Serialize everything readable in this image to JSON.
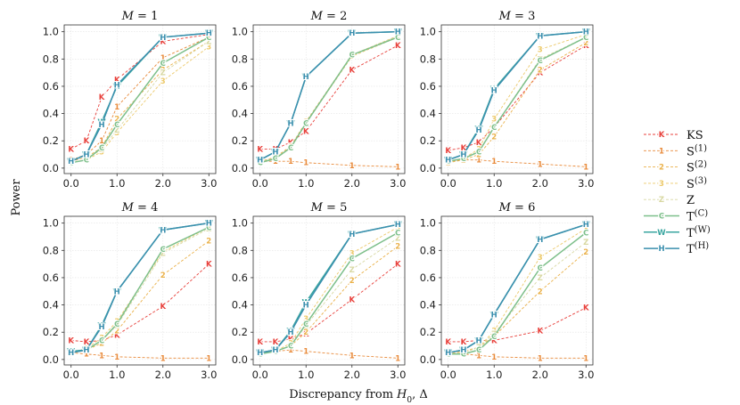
{
  "chart_data": {
    "type": "line",
    "x": [
      0.0,
      0.333,
      0.667,
      1.0,
      2.0,
      3.0
    ],
    "xlabel_main": "Discrepancy from",
    "xlabel_sub": "H",
    "xlabel_subscript": "0",
    "xlabel_tail": ", Δ",
    "ylabel": "Power",
    "xlim": [
      -0.15,
      3.15
    ],
    "ylim": [
      -0.04,
      1.05
    ],
    "xticks": [
      0.0,
      1.0,
      2.0,
      3.0
    ],
    "xtick_labels": [
      "0.0",
      "1.0",
      "2.0",
      "3.0"
    ],
    "yticks": [
      0.0,
      0.2,
      0.4,
      0.6,
      0.8,
      1.0
    ],
    "ytick_labels": [
      "0.0",
      "0.2",
      "0.4",
      "0.6",
      "0.8",
      "1.0"
    ],
    "legend": [
      {
        "key": "KS",
        "marker": "K",
        "label": "KS",
        "sup": "",
        "color": "#e8413c",
        "dash": "3 2",
        "width": 0.9
      },
      {
        "key": "S1",
        "marker": "1",
        "label": "S",
        "sup": "(1)",
        "color": "#e88a3a",
        "dash": "3 2",
        "width": 0.9
      },
      {
        "key": "S2",
        "marker": "2",
        "label": "S",
        "sup": "(2)",
        "color": "#eab14a",
        "dash": "3 2",
        "width": 0.9
      },
      {
        "key": "S3",
        "marker": "3",
        "label": "S",
        "sup": "(3)",
        "color": "#ecc96a",
        "dash": "3 2",
        "width": 0.9
      },
      {
        "key": "Z",
        "marker": "Z",
        "label": "Z",
        "sup": "",
        "color": "#d8d8a2",
        "dash": "3 2",
        "width": 0.9
      },
      {
        "key": "TC",
        "marker": "C",
        "label": "T",
        "sup": "(C)",
        "color": "#7dbf8a",
        "dash": "",
        "width": 1.5
      },
      {
        "key": "TW",
        "marker": "W",
        "label": "T",
        "sup": "(W)",
        "color": "#3aa6a0",
        "dash": "",
        "width": 1.5
      },
      {
        "key": "TH",
        "marker": "H",
        "label": "T",
        "sup": "(H)",
        "color": "#3a8fae",
        "dash": "",
        "width": 1.5
      }
    ],
    "panels": [
      {
        "title_var": "M",
        "title_eq": " = ",
        "title_val": "1",
        "series": {
          "KS": [
            0.14,
            0.2,
            0.52,
            0.65,
            0.93,
            0.98
          ],
          "S1": [
            0.06,
            0.1,
            0.2,
            0.45,
            0.81,
            0.96
          ],
          "S2": [
            0.05,
            0.08,
            0.15,
            0.36,
            0.72,
            0.93
          ],
          "S3": [
            0.04,
            0.06,
            0.12,
            0.26,
            0.64,
            0.89
          ],
          "Z": [
            0.04,
            0.06,
            0.14,
            0.28,
            0.7,
            0.93
          ],
          "TC": [
            0.04,
            0.06,
            0.15,
            0.32,
            0.77,
            0.96
          ],
          "TW": [
            0.05,
            0.1,
            0.34,
            0.6,
            0.96,
            0.99
          ],
          "TH": [
            0.05,
            0.1,
            0.32,
            0.61,
            0.96,
            0.99
          ]
        }
      },
      {
        "title_var": "M",
        "title_eq": " = ",
        "title_val": "2",
        "series": {
          "KS": [
            0.14,
            0.14,
            0.19,
            0.27,
            0.72,
            0.9
          ],
          "S1": [
            0.05,
            0.05,
            0.05,
            0.04,
            0.02,
            0.01
          ],
          "S2": [
            0.05,
            0.08,
            0.16,
            0.34,
            0.83,
            0.97
          ],
          "S3": [
            0.05,
            0.07,
            0.15,
            0.33,
            0.82,
            0.96
          ],
          "Z": [
            0.05,
            0.07,
            0.15,
            0.33,
            0.83,
            0.97
          ],
          "TC": [
            0.04,
            0.07,
            0.15,
            0.33,
            0.83,
            0.96
          ],
          "TW": [
            0.06,
            0.12,
            0.33,
            0.67,
            0.99,
            1.0
          ],
          "TH": [
            0.06,
            0.12,
            0.33,
            0.67,
            0.99,
            1.0
          ]
        }
      },
      {
        "title_var": "M",
        "title_eq": " = ",
        "title_val": "3",
        "series": {
          "KS": [
            0.13,
            0.15,
            0.19,
            0.3,
            0.7,
            0.9
          ],
          "S1": [
            0.05,
            0.06,
            0.06,
            0.05,
            0.03,
            0.01
          ],
          "S2": [
            0.04,
            0.06,
            0.1,
            0.23,
            0.72,
            0.92
          ],
          "S3": [
            0.05,
            0.07,
            0.14,
            0.36,
            0.87,
            0.98
          ],
          "Z": [
            0.05,
            0.07,
            0.12,
            0.3,
            0.8,
            0.96
          ],
          "TC": [
            0.05,
            0.07,
            0.12,
            0.3,
            0.79,
            0.96
          ],
          "TW": [
            0.06,
            0.1,
            0.29,
            0.58,
            0.97,
            1.0
          ],
          "TH": [
            0.06,
            0.1,
            0.28,
            0.57,
            0.97,
            1.0
          ]
        }
      },
      {
        "title_var": "M",
        "title_eq": " = ",
        "title_val": "4",
        "series": {
          "KS": [
            0.14,
            0.13,
            0.14,
            0.18,
            0.39,
            0.7
          ],
          "S1": [
            0.05,
            0.04,
            0.03,
            0.02,
            0.01,
            0.01
          ],
          "S2": [
            0.05,
            0.07,
            0.12,
            0.21,
            0.62,
            0.87
          ],
          "S3": [
            0.05,
            0.08,
            0.16,
            0.28,
            0.79,
            0.97
          ],
          "Z": [
            0.05,
            0.07,
            0.14,
            0.25,
            0.78,
            0.96
          ],
          "TC": [
            0.05,
            0.07,
            0.14,
            0.26,
            0.81,
            0.97
          ],
          "TW": [
            0.06,
            0.07,
            0.25,
            0.5,
            0.95,
            1.0
          ],
          "TH": [
            0.05,
            0.07,
            0.24,
            0.5,
            0.95,
            1.0
          ]
        }
      },
      {
        "title_var": "M",
        "title_eq": " = ",
        "title_val": "5",
        "series": {
          "KS": [
            0.13,
            0.13,
            0.15,
            0.19,
            0.44,
            0.7
          ],
          "S1": [
            0.05,
            0.06,
            0.07,
            0.06,
            0.03,
            0.01
          ],
          "S2": [
            0.04,
            0.06,
            0.1,
            0.2,
            0.58,
            0.83
          ],
          "S3": [
            0.04,
            0.06,
            0.12,
            0.3,
            0.78,
            0.97
          ],
          "Z": [
            0.04,
            0.06,
            0.1,
            0.25,
            0.66,
            0.89
          ],
          "TC": [
            0.04,
            0.06,
            0.1,
            0.26,
            0.74,
            0.93
          ],
          "TW": [
            0.05,
            0.07,
            0.21,
            0.42,
            0.92,
            0.99
          ],
          "TH": [
            0.05,
            0.07,
            0.2,
            0.4,
            0.92,
            0.99
          ]
        }
      },
      {
        "title_var": "M",
        "title_eq": " = ",
        "title_val": "6",
        "series": {
          "KS": [
            0.13,
            0.13,
            0.14,
            0.14,
            0.21,
            0.38
          ],
          "S1": [
            0.05,
            0.04,
            0.03,
            0.02,
            0.01,
            0.01
          ],
          "S2": [
            0.04,
            0.06,
            0.09,
            0.17,
            0.5,
            0.79
          ],
          "S3": [
            0.04,
            0.05,
            0.09,
            0.21,
            0.75,
            0.96
          ],
          "Z": [
            0.04,
            0.05,
            0.09,
            0.19,
            0.6,
            0.86
          ],
          "TC": [
            0.04,
            0.04,
            0.07,
            0.17,
            0.67,
            0.93
          ],
          "TW": [
            0.05,
            0.07,
            0.14,
            0.33,
            0.88,
            0.99
          ],
          "TH": [
            0.05,
            0.07,
            0.14,
            0.33,
            0.88,
            0.99
          ]
        }
      }
    ]
  }
}
